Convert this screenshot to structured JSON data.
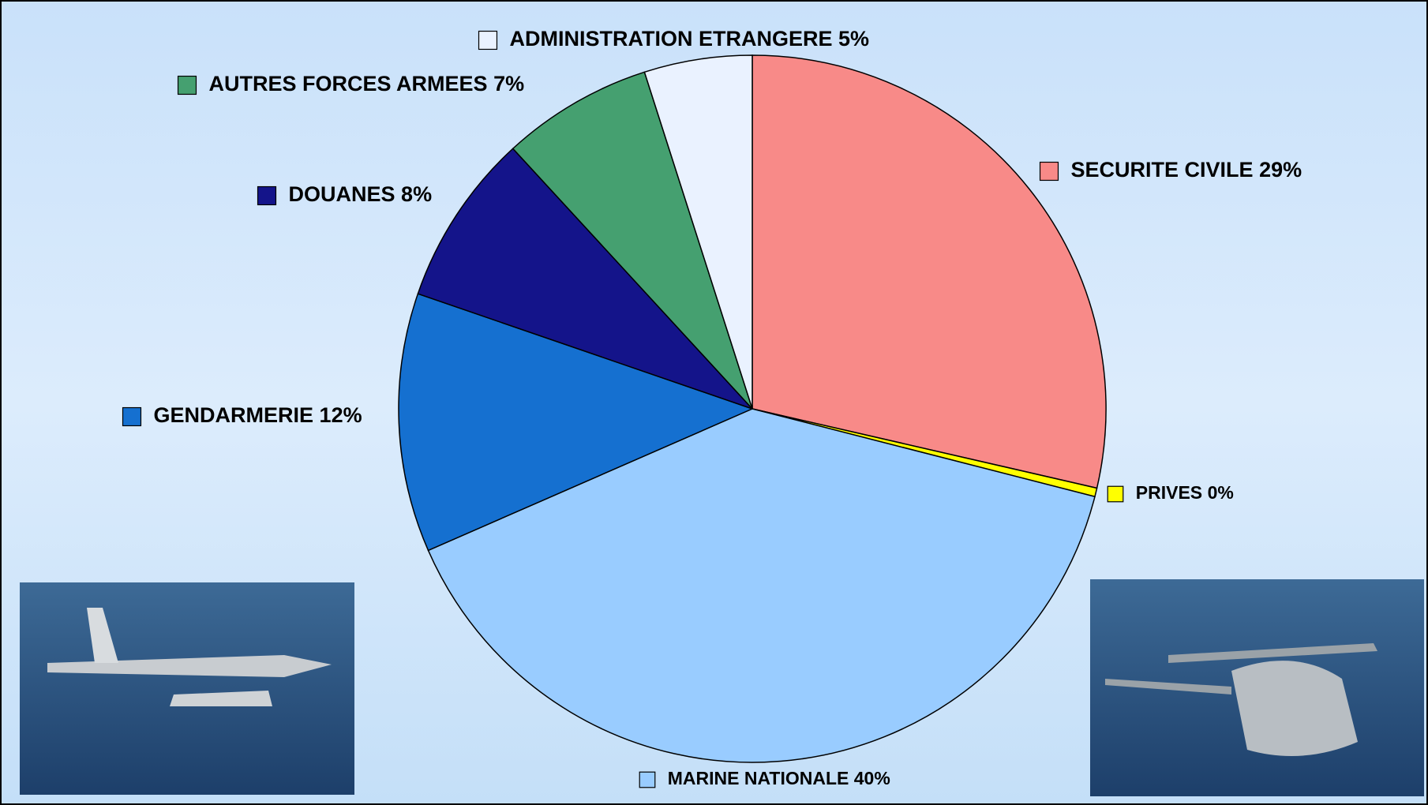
{
  "chart_data": {
    "type": "pie",
    "categories": [
      "SECURITE CIVILE",
      "PRIVES",
      "MARINE NATIONALE",
      "GENDARMERIE",
      "DOUANES",
      "AUTRES FORCES ARMEES",
      "ADMINISTRATION ETRANGERE"
    ],
    "values": [
      29,
      0.4,
      40,
      12,
      8,
      7,
      5
    ],
    "value_labels": [
      "29%",
      "0%",
      "40%",
      "12%",
      "8%",
      "7%",
      "5%"
    ],
    "colors": [
      "#f88a88",
      "#ffff00",
      "#99ccff",
      "#1570d0",
      "#14148a",
      "#45a070",
      "#eaf2ff"
    ]
  }
}
